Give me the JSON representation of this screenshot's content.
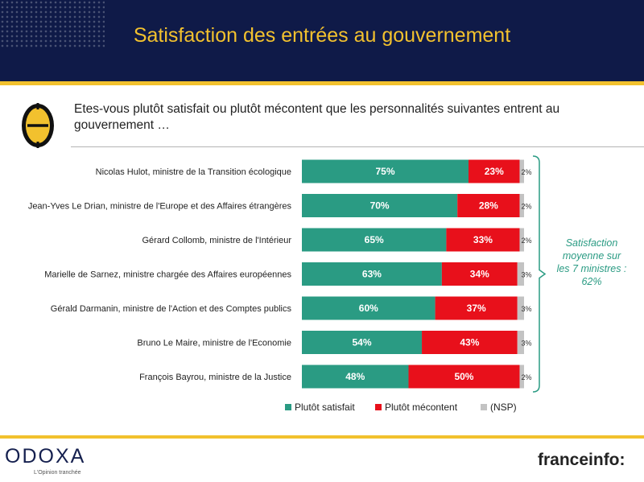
{
  "header": {
    "title": "Satisfaction des entrées au gouvernement"
  },
  "question": "Etes-vous plutôt satisfait ou plutôt mécontent que les personnalités suivantes entrent au gouvernement …",
  "chart_data": {
    "type": "bar",
    "orientation": "horizontal",
    "stacked": true,
    "categories": [
      "Nicolas Hulot, ministre de la Transition écologique",
      "Jean-Yves Le Drian, ministre de l'Europe et des Affaires étrangères",
      "Gérard Collomb, ministre de l'Intérieur",
      "Marielle de Sarnez, ministre chargée des Affaires européennes",
      "Gérald Darmanin, ministre de l'Action et des Comptes publics",
      "Bruno Le Maire, ministre de l'Economie",
      "François Bayrou, ministre de la Justice"
    ],
    "series": [
      {
        "name": "Plutôt satisfait",
        "color": "#2a9b83",
        "values": [
          75,
          70,
          65,
          63,
          60,
          54,
          48
        ]
      },
      {
        "name": "Plutôt mécontent",
        "color": "#e8101b",
        "values": [
          23,
          28,
          33,
          34,
          37,
          43,
          50
        ]
      },
      {
        "name": "(NSP)",
        "color": "#c3c3c3",
        "values": [
          2,
          2,
          2,
          3,
          3,
          3,
          2
        ]
      }
    ],
    "unit": "%",
    "xlim": [
      0,
      100
    ]
  },
  "note": "Satisfaction moyenne sur les 7 ministres : 62%",
  "footer": {
    "brand_left": "ODOXA",
    "brand_left_tagline": "L'Opinion tranchée",
    "brand_right": "franceinfo:"
  },
  "colors": {
    "navy": "#0f1a48",
    "gold": "#f2c12e",
    "teal": "#2a9b83",
    "red": "#e8101b",
    "grey": "#c3c3c3"
  }
}
